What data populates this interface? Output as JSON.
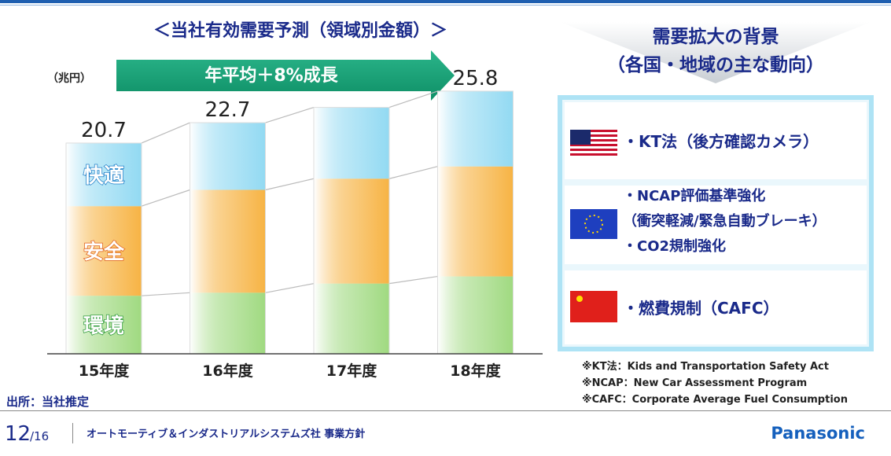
{
  "chart_data": {
    "type": "stacked_bar",
    "title": "＜当社有効需要予測（領域別金額）＞",
    "unit": "（兆円）",
    "growth": "年平均＋8%成長",
    "categories": [
      "15年度",
      "16年度",
      "17年度",
      "18年度"
    ],
    "series": [
      {
        "name": "環境",
        "color": "#8fd36a",
        "values": [
          5.7,
          6.0,
          6.9,
          7.6
        ]
      },
      {
        "name": "安全",
        "color": "#f5a623",
        "values": [
          8.8,
          10.1,
          10.3,
          10.8
        ]
      },
      {
        "name": "快適",
        "color": "#7fd3f0",
        "values": [
          6.2,
          6.6,
          7.0,
          7.4
        ]
      }
    ],
    "total_labels": [
      20.7,
      22.7,
      null,
      25.8
    ]
  },
  "source": "出所：当社推定",
  "background": {
    "title": "需要拡大の背景",
    "subtitle": "（各国・地域の主な動向）",
    "items": [
      {
        "lines": [
          "・KT法（後方確認カメラ）"
        ]
      },
      {
        "lines": [
          "・NCAP評価基準強化",
          "（衝突軽減/緊急自動ブレーキ）",
          "・CO2規制強化"
        ]
      },
      {
        "lines": [
          "・燃費規制（CAFC）"
        ]
      }
    ]
  },
  "notes": [
    "※KT法：Kids and Transportation Safety Act",
    "※NCAP：New Car Assessment Program",
    "※CAFC：Corporate Average Fuel Consumption"
  ],
  "footer": {
    "page": "12",
    "page_total": "/16",
    "division": "オートモーティブ＆インダストリアルシステムズ社 事業方針",
    "brand": "Panasonic"
  }
}
